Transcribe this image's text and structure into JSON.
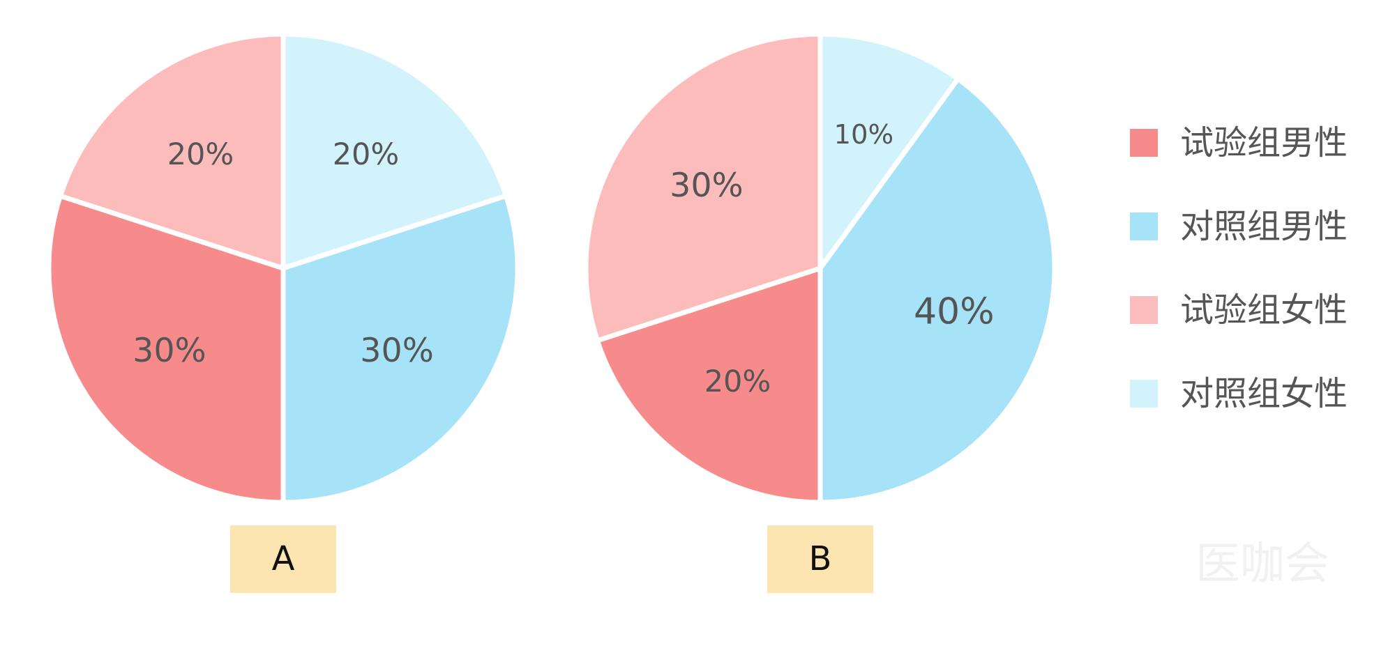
{
  "chart_data": [
    {
      "type": "pie",
      "title": "A",
      "categories": [
        "对照组女性",
        "对照组男性",
        "试验组男性",
        "试验组女性"
      ],
      "values": [
        20,
        30,
        30,
        20
      ],
      "value_labels": [
        "20%",
        "30%",
        "30%",
        "20%"
      ],
      "colors": [
        "#d3f3fc",
        "#a6e2f8",
        "#f78a8a",
        "#fdbcbc"
      ]
    },
    {
      "type": "pie",
      "title": "B",
      "categories": [
        "对照组女性",
        "对照组男性",
        "试验组男性",
        "试验组女性"
      ],
      "values": [
        10,
        40,
        20,
        30
      ],
      "value_labels": [
        "10%",
        "40%",
        "20%",
        "30%"
      ],
      "colors": [
        "#d3f3fc",
        "#a6e2f8",
        "#f78a8a",
        "#fdbcbc"
      ]
    }
  ],
  "legend": {
    "items": [
      "试验组男性",
      "对照组男性",
      "试验组女性",
      "对照组女性"
    ],
    "colors": [
      "#f78a8a",
      "#a6e2f8",
      "#fdbcbc",
      "#d3f3fc"
    ]
  },
  "watermark": "医咖会"
}
